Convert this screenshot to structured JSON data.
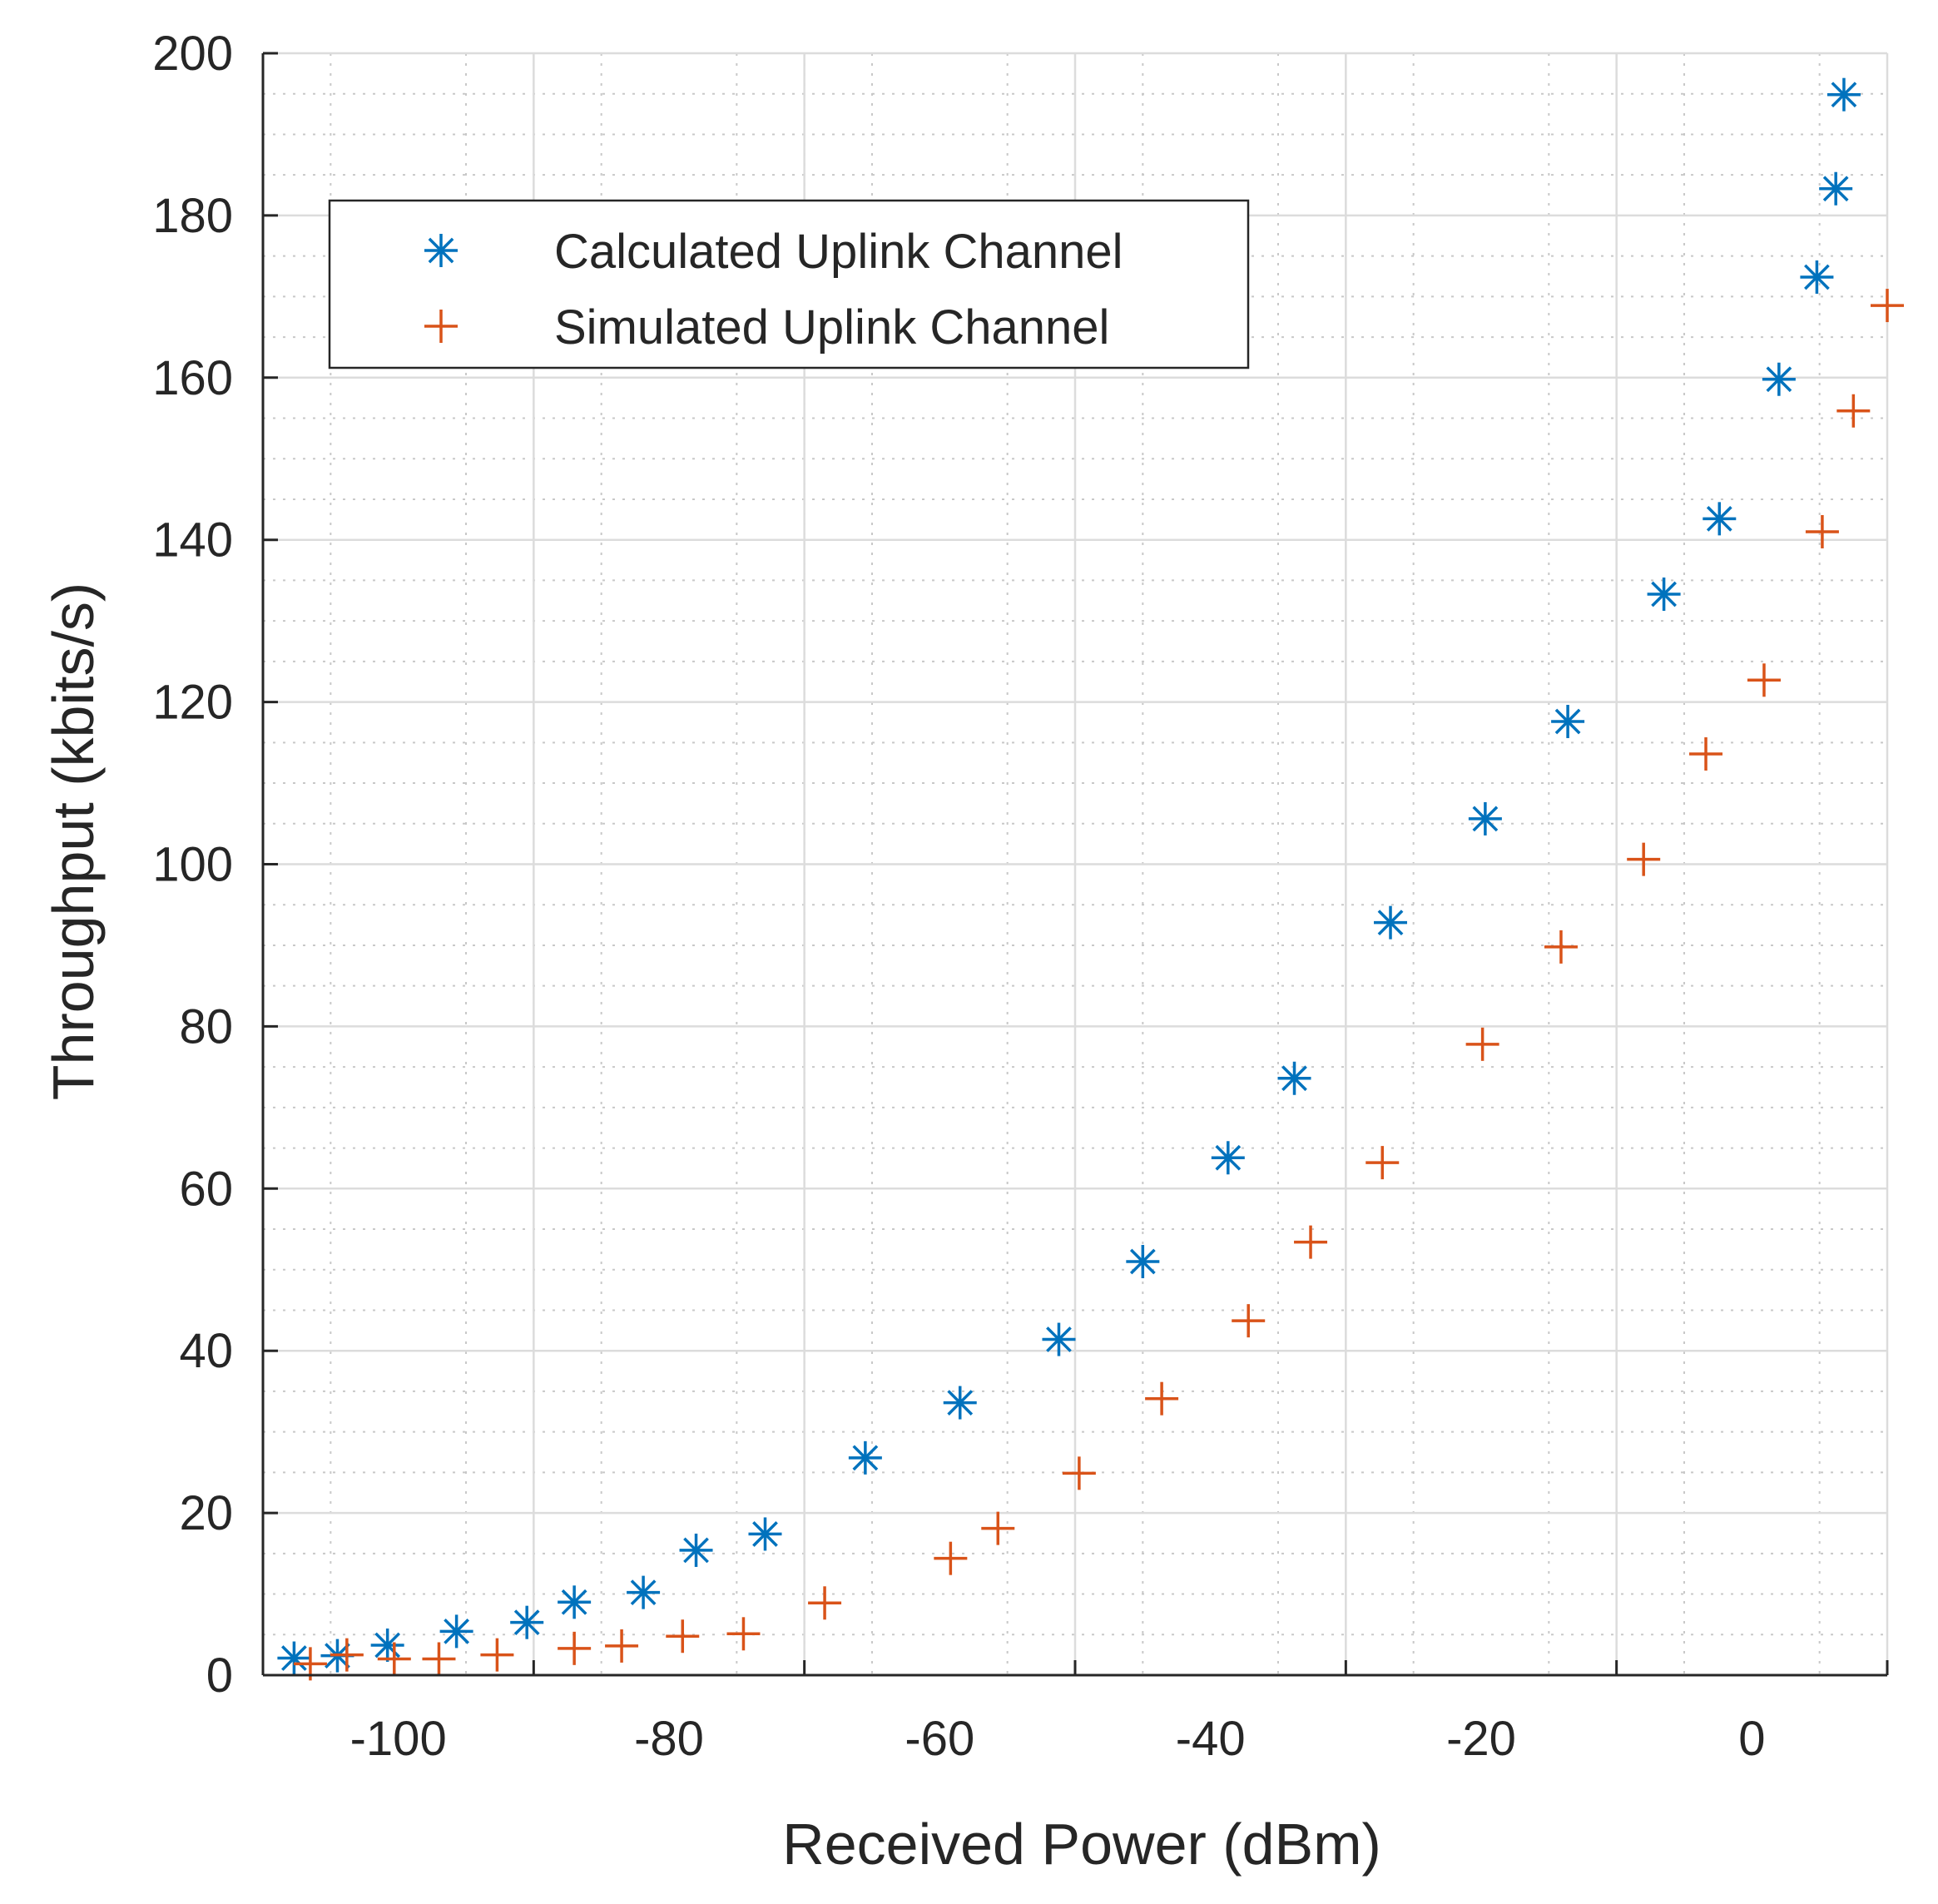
{
  "chart_data": {
    "type": "scatter",
    "title": "",
    "xlabel": "Received Power (dBm)",
    "ylabel": "Throughput (kbits/s)",
    "xlim": [
      -110,
      10
    ],
    "ylim": [
      0,
      200
    ],
    "xticks": [
      -100,
      -80,
      -60,
      -40,
      -20,
      0
    ],
    "yticks": [
      0,
      20,
      40,
      60,
      80,
      100,
      120,
      140,
      160,
      180,
      200
    ],
    "grid": true,
    "minor_grid": true,
    "legend_position": "top-left",
    "series": [
      {
        "name": "Calculated Uplink Channel",
        "marker": "asterisk",
        "color": "#0072BD",
        "x": [
          -107.7,
          -104.5,
          -100.8,
          -95.7,
          -90.5,
          -87.0,
          -81.9,
          -78.0,
          -72.9,
          -65.5,
          -58.5,
          -51.2,
          -45.0,
          -38.7,
          -33.8,
          -26.7,
          -19.7,
          -13.6,
          -6.5,
          -2.4,
          2.0,
          4.8,
          6.2,
          6.8
        ],
        "y": [
          2.1,
          2.4,
          3.7,
          5.4,
          6.5,
          9.0,
          10.2,
          15.4,
          17.4,
          26.8,
          33.6,
          41.4,
          51.0,
          63.8,
          73.6,
          92.8,
          105.6,
          117.6,
          133.3,
          142.6,
          159.8,
          172.4,
          183.3,
          194.9
        ]
      },
      {
        "name": "Simulated Uplink Channel",
        "marker": "plus",
        "color": "#D95319",
        "x": [
          -106.5,
          -103.8,
          -100.3,
          -97.0,
          -92.7,
          -87.0,
          -83.5,
          -79.0,
          -74.5,
          -68.5,
          -59.2,
          -55.7,
          -49.7,
          -43.6,
          -37.2,
          -32.6,
          -27.3,
          -19.9,
          -14.1,
          -8.0,
          -3.4,
          0.9,
          5.2,
          7.5,
          10.0
        ],
        "y": [
          1.4,
          2.5,
          2.0,
          2.0,
          2.5,
          3.3,
          3.6,
          4.8,
          5.1,
          8.9,
          14.4,
          18.1,
          24.9,
          34.1,
          43.7,
          53.4,
          63.2,
          77.8,
          89.8,
          100.6,
          113.6,
          122.7,
          141.0,
          155.9,
          168.9
        ]
      }
    ]
  }
}
